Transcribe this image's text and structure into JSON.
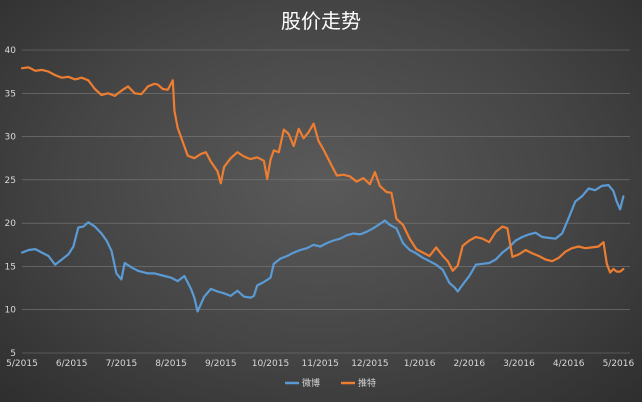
{
  "chart_data": {
    "type": "line",
    "title": "股价走势",
    "xlabel": "",
    "ylabel": "",
    "ylim": [
      5,
      40
    ],
    "y_ticks": [
      5,
      10,
      15,
      20,
      25,
      30,
      35,
      40
    ],
    "x_ticks": [
      "5/2015",
      "6/2015",
      "7/2015",
      "8/2015",
      "9/2015",
      "10/2015",
      "11/2015",
      "12/2015",
      "1/2016",
      "2/2016",
      "3/2016",
      "4/2016",
      "5/2016"
    ],
    "grid": true,
    "legend_position": "bottom",
    "series": [
      {
        "name": "微博",
        "color": "#5b9bd5",
        "points": [
          [
            0,
            16.6
          ],
          [
            0.2,
            16.9
          ],
          [
            0.4,
            17.0
          ],
          [
            0.6,
            16.6
          ],
          [
            0.8,
            16.2
          ],
          [
            1.0,
            15.2
          ],
          [
            1.2,
            15.8
          ],
          [
            1.4,
            16.4
          ],
          [
            1.55,
            17.3
          ],
          [
            1.7,
            19.5
          ],
          [
            1.85,
            19.6
          ],
          [
            2.0,
            20.1
          ],
          [
            2.2,
            19.6
          ],
          [
            2.4,
            18.8
          ],
          [
            2.55,
            18.0
          ],
          [
            2.7,
            16.8
          ],
          [
            2.85,
            14.2
          ],
          [
            3.0,
            13.5
          ],
          [
            3.1,
            15.4
          ],
          [
            3.3,
            14.9
          ],
          [
            3.5,
            14.5
          ],
          [
            3.8,
            14.2
          ],
          [
            4.0,
            14.2
          ],
          [
            4.3,
            13.9
          ],
          [
            4.5,
            13.7
          ],
          [
            4.7,
            13.3
          ],
          [
            4.9,
            13.9
          ],
          [
            5.1,
            12.4
          ],
          [
            5.2,
            11.4
          ],
          [
            5.3,
            9.8
          ],
          [
            5.5,
            11.5
          ],
          [
            5.7,
            12.4
          ],
          [
            5.9,
            12.1
          ],
          [
            6.1,
            11.9
          ],
          [
            6.3,
            11.6
          ],
          [
            6.5,
            12.2
          ],
          [
            6.7,
            11.5
          ],
          [
            6.9,
            11.4
          ],
          [
            7.0,
            11.6
          ],
          [
            7.1,
            12.8
          ],
          [
            7.3,
            13.2
          ],
          [
            7.5,
            13.7
          ],
          [
            7.6,
            15.3
          ],
          [
            7.8,
            15.9
          ],
          [
            8.0,
            16.2
          ],
          [
            8.2,
            16.6
          ],
          [
            8.4,
            16.9
          ],
          [
            8.6,
            17.1
          ],
          [
            8.8,
            17.5
          ],
          [
            9.0,
            17.3
          ],
          [
            9.2,
            17.7
          ],
          [
            9.4,
            18.0
          ],
          [
            9.6,
            18.2
          ],
          [
            9.8,
            18.6
          ],
          [
            10.0,
            18.8
          ],
          [
            10.2,
            18.7
          ],
          [
            10.4,
            19.0
          ],
          [
            10.6,
            19.4
          ],
          [
            10.8,
            19.9
          ],
          [
            10.95,
            20.3
          ],
          [
            11.1,
            19.8
          ],
          [
            11.3,
            19.4
          ],
          [
            11.5,
            17.7
          ],
          [
            11.7,
            16.9
          ],
          [
            11.9,
            16.5
          ],
          [
            12.1,
            16.0
          ],
          [
            12.3,
            15.6
          ],
          [
            12.5,
            15.2
          ],
          [
            12.7,
            14.6
          ],
          [
            12.9,
            13.1
          ],
          [
            13.05,
            12.6
          ],
          [
            13.15,
            12.1
          ],
          [
            13.3,
            12.9
          ],
          [
            13.5,
            13.9
          ],
          [
            13.7,
            15.2
          ],
          [
            13.9,
            15.3
          ],
          [
            14.1,
            15.4
          ],
          [
            14.3,
            15.8
          ],
          [
            14.5,
            16.6
          ],
          [
            14.7,
            17.2
          ],
          [
            14.9,
            18.0
          ],
          [
            15.1,
            18.4
          ],
          [
            15.3,
            18.7
          ],
          [
            15.5,
            18.9
          ],
          [
            15.7,
            18.4
          ],
          [
            15.9,
            18.3
          ],
          [
            16.1,
            18.2
          ],
          [
            16.3,
            18.8
          ],
          [
            16.5,
            20.6
          ],
          [
            16.7,
            22.5
          ],
          [
            16.9,
            23.1
          ],
          [
            17.1,
            24.0
          ],
          [
            17.3,
            23.8
          ],
          [
            17.5,
            24.3
          ],
          [
            17.7,
            24.4
          ],
          [
            17.85,
            23.7
          ],
          [
            17.95,
            22.5
          ],
          [
            18.05,
            21.6
          ],
          [
            18.15,
            23.1
          ]
        ]
      },
      {
        "name": "推特",
        "color": "#ed7d31",
        "points": [
          [
            0,
            37.9
          ],
          [
            0.2,
            38.0
          ],
          [
            0.4,
            37.6
          ],
          [
            0.6,
            37.7
          ],
          [
            0.8,
            37.5
          ],
          [
            1.0,
            37.1
          ],
          [
            1.2,
            36.8
          ],
          [
            1.4,
            36.9
          ],
          [
            1.6,
            36.6
          ],
          [
            1.8,
            36.8
          ],
          [
            2.0,
            36.5
          ],
          [
            2.2,
            35.5
          ],
          [
            2.4,
            34.8
          ],
          [
            2.6,
            35.0
          ],
          [
            2.8,
            34.7
          ],
          [
            3.0,
            35.3
          ],
          [
            3.2,
            35.8
          ],
          [
            3.4,
            35.0
          ],
          [
            3.6,
            34.9
          ],
          [
            3.8,
            35.8
          ],
          [
            4.0,
            36.1
          ],
          [
            4.1,
            36.0
          ],
          [
            4.25,
            35.5
          ],
          [
            4.4,
            35.4
          ],
          [
            4.55,
            36.5
          ],
          [
            4.6,
            33.0
          ],
          [
            4.7,
            31.0
          ],
          [
            4.85,
            29.4
          ],
          [
            5.0,
            27.8
          ],
          [
            5.2,
            27.5
          ],
          [
            5.4,
            28.0
          ],
          [
            5.55,
            28.2
          ],
          [
            5.7,
            27.1
          ],
          [
            5.9,
            26.0
          ],
          [
            6.0,
            24.6
          ],
          [
            6.1,
            26.5
          ],
          [
            6.3,
            27.5
          ],
          [
            6.5,
            28.2
          ],
          [
            6.7,
            27.7
          ],
          [
            6.9,
            27.4
          ],
          [
            7.1,
            27.6
          ],
          [
            7.3,
            27.2
          ],
          [
            7.4,
            25.1
          ],
          [
            7.5,
            27.3
          ],
          [
            7.6,
            28.4
          ],
          [
            7.75,
            28.2
          ],
          [
            7.9,
            30.8
          ],
          [
            8.05,
            30.3
          ],
          [
            8.2,
            28.9
          ],
          [
            8.35,
            30.9
          ],
          [
            8.5,
            29.8
          ],
          [
            8.65,
            30.5
          ],
          [
            8.8,
            31.5
          ],
          [
            8.95,
            29.5
          ],
          [
            9.1,
            28.5
          ],
          [
            9.3,
            27.0
          ],
          [
            9.5,
            25.5
          ],
          [
            9.7,
            25.6
          ],
          [
            9.9,
            25.4
          ],
          [
            10.1,
            24.8
          ],
          [
            10.3,
            25.2
          ],
          [
            10.5,
            24.5
          ],
          [
            10.65,
            25.9
          ],
          [
            10.8,
            24.3
          ],
          [
            11.0,
            23.6
          ],
          [
            11.15,
            23.5
          ],
          [
            11.3,
            20.5
          ],
          [
            11.5,
            19.8
          ],
          [
            11.7,
            18.2
          ],
          [
            11.9,
            17.0
          ],
          [
            12.1,
            16.6
          ],
          [
            12.3,
            16.2
          ],
          [
            12.5,
            17.2
          ],
          [
            12.7,
            16.2
          ],
          [
            12.85,
            15.6
          ],
          [
            13.0,
            14.5
          ],
          [
            13.15,
            15.1
          ],
          [
            13.3,
            17.4
          ],
          [
            13.5,
            18.0
          ],
          [
            13.7,
            18.4
          ],
          [
            13.9,
            18.2
          ],
          [
            14.1,
            17.8
          ],
          [
            14.3,
            19.0
          ],
          [
            14.5,
            19.6
          ],
          [
            14.65,
            19.4
          ],
          [
            14.8,
            16.1
          ],
          [
            15.0,
            16.4
          ],
          [
            15.2,
            16.9
          ],
          [
            15.4,
            16.5
          ],
          [
            15.6,
            16.2
          ],
          [
            15.8,
            15.8
          ],
          [
            16.0,
            15.6
          ],
          [
            16.2,
            16.0
          ],
          [
            16.4,
            16.7
          ],
          [
            16.6,
            17.1
          ],
          [
            16.8,
            17.3
          ],
          [
            17.0,
            17.1
          ],
          [
            17.2,
            17.2
          ],
          [
            17.4,
            17.3
          ],
          [
            17.55,
            17.8
          ],
          [
            17.65,
            15.3
          ],
          [
            17.75,
            14.3
          ],
          [
            17.85,
            14.7
          ],
          [
            17.95,
            14.4
          ],
          [
            18.05,
            14.4
          ],
          [
            18.15,
            14.7
          ]
        ]
      }
    ]
  }
}
